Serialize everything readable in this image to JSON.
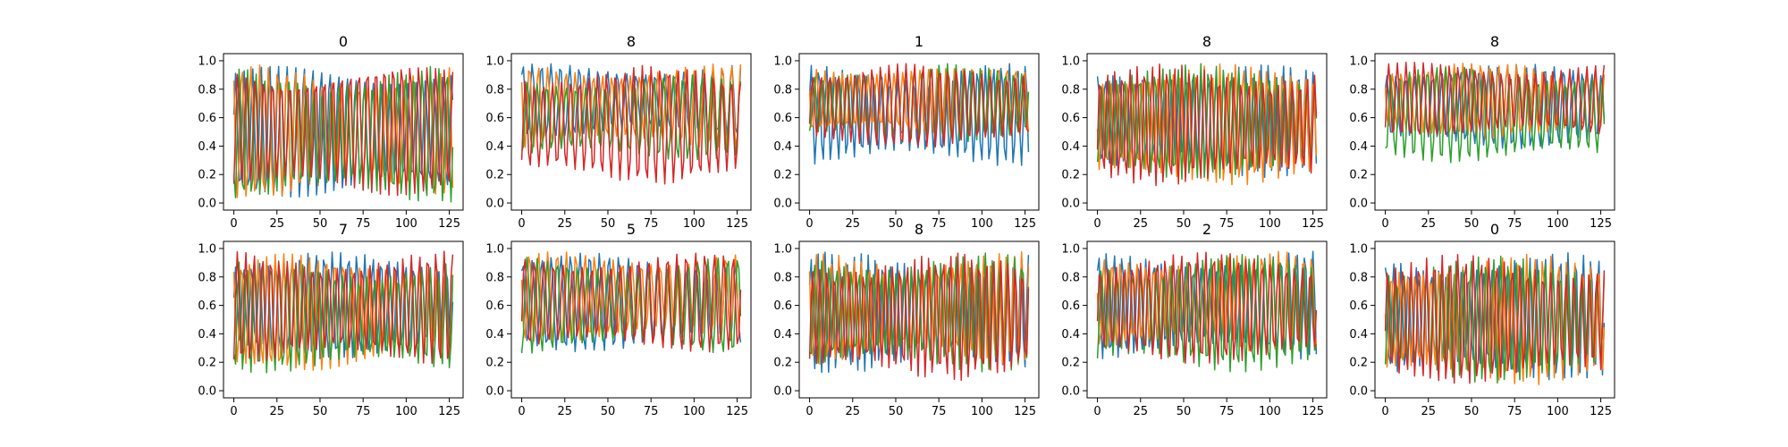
{
  "chart_data": {
    "type": "line",
    "layout": "grid 2 rows x 5 columns of subplots",
    "series_colors": [
      "#1f77b4",
      "#ff7f0e",
      "#2ca02c",
      "#d62728"
    ],
    "xlim": [
      -6,
      133
    ],
    "ylim": [
      -0.05,
      1.05
    ],
    "xticks": [
      0,
      25,
      50,
      75,
      100,
      125
    ],
    "yticks": [
      0.0,
      0.2,
      0.4,
      0.6,
      0.8,
      1.0
    ],
    "xtick_labels": [
      "0",
      "25",
      "50",
      "75",
      "100",
      "125"
    ],
    "ytick_labels": [
      "0.0",
      "0.2",
      "0.4",
      "0.6",
      "0.8",
      "1.0"
    ],
    "points_per_series": 128,
    "grid": false,
    "legend": "none",
    "panels": [
      {
        "title": "0",
        "series": [
          {
            "period": 5.0,
            "phase": 0.3,
            "base": 0.5,
            "amp": 0.48
          },
          {
            "period": 5.2,
            "phase": 1.9,
            "base": 0.5,
            "amp": 0.47
          },
          {
            "period": 4.8,
            "phase": 3.4,
            "base": 0.48,
            "amp": 0.48
          },
          {
            "period": 5.0,
            "phase": 5.0,
            "base": 0.52,
            "amp": 0.47
          }
        ]
      },
      {
        "title": "8",
        "series": [
          {
            "period": 5.5,
            "phase": 0.8,
            "base": 0.72,
            "amp": 0.26
          },
          {
            "period": 5.3,
            "phase": 2.2,
            "base": 0.68,
            "amp": 0.3
          },
          {
            "period": 5.6,
            "phase": 3.9,
            "base": 0.6,
            "amp": 0.3
          },
          {
            "period": 5.2,
            "phase": 5.3,
            "base": 0.55,
            "amp": 0.42
          }
        ]
      },
      {
        "title": "1",
        "series": [
          {
            "period": 4.6,
            "phase": 0.4,
            "base": 0.62,
            "amp": 0.36
          },
          {
            "period": 5.0,
            "phase": 2.5,
            "base": 0.72,
            "amp": 0.26
          },
          {
            "period": 4.8,
            "phase": 4.0,
            "base": 0.7,
            "amp": 0.28
          },
          {
            "period": 4.9,
            "phase": 5.6,
            "base": 0.68,
            "amp": 0.3
          }
        ]
      },
      {
        "title": "8",
        "series": [
          {
            "period": 4.3,
            "phase": 1.1,
            "base": 0.58,
            "amp": 0.4
          },
          {
            "period": 4.5,
            "phase": 2.9,
            "base": 0.55,
            "amp": 0.43
          },
          {
            "period": 4.4,
            "phase": 4.1,
            "base": 0.57,
            "amp": 0.41
          },
          {
            "period": 4.3,
            "phase": 5.7,
            "base": 0.55,
            "amp": 0.43
          }
        ]
      },
      {
        "title": "8",
        "series": [
          {
            "period": 5.4,
            "phase": 0.6,
            "base": 0.68,
            "amp": 0.3
          },
          {
            "period": 5.1,
            "phase": 2.3,
            "base": 0.72,
            "amp": 0.27
          },
          {
            "period": 5.3,
            "phase": 3.8,
            "base": 0.62,
            "amp": 0.34
          },
          {
            "period": 5.0,
            "phase": 5.4,
            "base": 0.72,
            "amp": 0.27
          }
        ]
      },
      {
        "title": "7",
        "series": [
          {
            "period": 4.7,
            "phase": 0.2,
            "base": 0.6,
            "amp": 0.38
          },
          {
            "period": 4.9,
            "phase": 1.8,
            "base": 0.55,
            "amp": 0.42
          },
          {
            "period": 4.6,
            "phase": 3.5,
            "base": 0.52,
            "amp": 0.4
          },
          {
            "period": 4.8,
            "phase": 5.1,
            "base": 0.58,
            "amp": 0.4
          }
        ]
      },
      {
        "title": "5",
        "series": [
          {
            "period": 5.6,
            "phase": 0.9,
            "base": 0.62,
            "amp": 0.35
          },
          {
            "period": 5.4,
            "phase": 2.4,
            "base": 0.66,
            "amp": 0.32
          },
          {
            "period": 5.8,
            "phase": 4.2,
            "base": 0.6,
            "amp": 0.34
          },
          {
            "period": 5.5,
            "phase": 5.8,
            "base": 0.62,
            "amp": 0.35
          }
        ]
      },
      {
        "title": "8",
        "series": [
          {
            "period": 4.2,
            "phase": 0.5,
            "base": 0.55,
            "amp": 0.43
          },
          {
            "period": 4.4,
            "phase": 2.1,
            "base": 0.58,
            "amp": 0.4
          },
          {
            "period": 4.3,
            "phase": 3.6,
            "base": 0.55,
            "amp": 0.42
          },
          {
            "period": 4.2,
            "phase": 5.2,
            "base": 0.52,
            "amp": 0.45
          }
        ]
      },
      {
        "title": "2",
        "series": [
          {
            "period": 4.6,
            "phase": 0.7,
            "base": 0.6,
            "amp": 0.38
          },
          {
            "period": 4.8,
            "phase": 2.6,
            "base": 0.62,
            "amp": 0.36
          },
          {
            "period": 4.5,
            "phase": 4.3,
            "base": 0.55,
            "amp": 0.42
          },
          {
            "period": 4.7,
            "phase": 5.9,
            "base": 0.58,
            "amp": 0.4
          }
        ]
      },
      {
        "title": "0",
        "series": [
          {
            "period": 4.4,
            "phase": 1.0,
            "base": 0.52,
            "amp": 0.45
          },
          {
            "period": 4.6,
            "phase": 2.7,
            "base": 0.5,
            "amp": 0.46
          },
          {
            "period": 4.3,
            "phase": 4.4,
            "base": 0.5,
            "amp": 0.45
          },
          {
            "period": 4.5,
            "phase": 6.0,
            "base": 0.5,
            "amp": 0.46
          }
        ]
      }
    ]
  }
}
